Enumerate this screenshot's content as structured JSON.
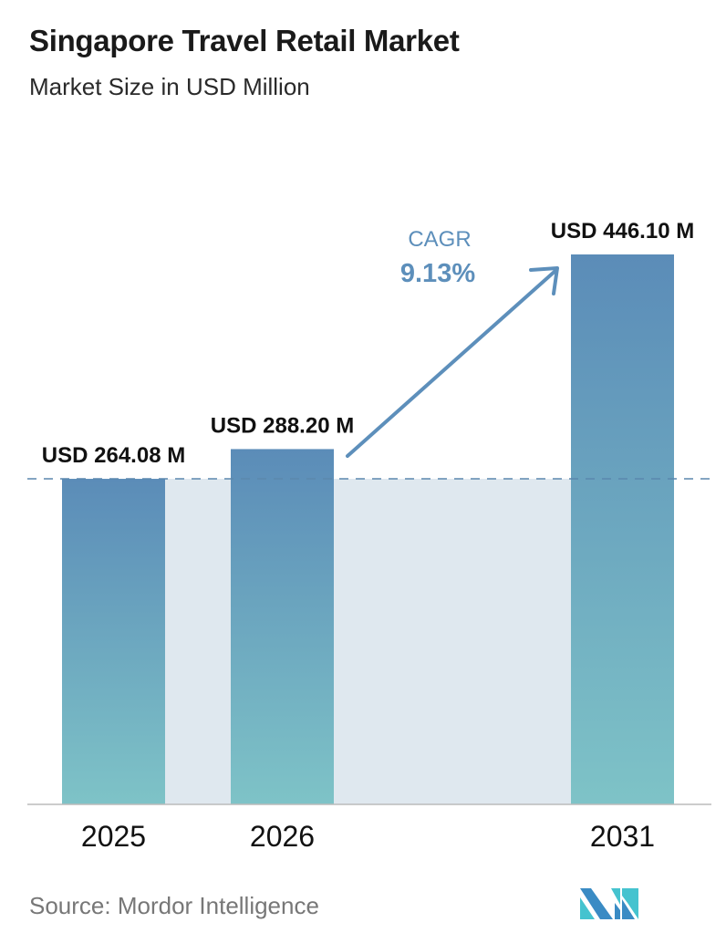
{
  "title": "Singapore Travel Retail Market",
  "subtitle": "Market Size in USD Million",
  "source": "Source:  Mordor Intelligence",
  "chart_data": {
    "type": "bar",
    "categories": [
      "2025",
      "2026",
      "2031"
    ],
    "values": [
      264.08,
      288.2,
      446.1
    ],
    "data_labels": [
      "USD 264.08 M",
      "USD 288.20 M",
      "USD 446.10 M"
    ],
    "unit": "USD Million",
    "annotation": {
      "label": "CAGR",
      "value": "9.13%"
    },
    "grid": false,
    "colors": {
      "bar_top": "#5b8cb8",
      "bar_bottom": "#7ec3c7",
      "band": "#dfe8ef",
      "cagr": "#5d8fbb",
      "reference_line": "#5b87ad"
    }
  }
}
